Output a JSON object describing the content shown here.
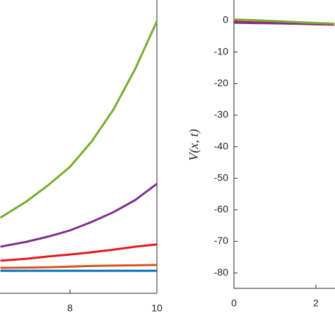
{
  "chart_data": [
    {
      "type": "line",
      "x": [
        6.4,
        7,
        7.5,
        8,
        8.5,
        9,
        9.5,
        10
      ],
      "xlim": [
        6.39,
        10
      ],
      "xticks": [
        8,
        10
      ],
      "ylim": [
        0,
        90
      ],
      "series": [
        {
          "name": "blue",
          "color": "#0072bd",
          "values": [
            6.9,
            6.9,
            6.9,
            6.9,
            6.9,
            6.9,
            6.9,
            6.9
          ]
        },
        {
          "name": "orange",
          "color": "#d95319",
          "values": [
            7.8,
            7.9,
            8.0,
            8.2,
            8.4,
            8.5,
            8.6,
            8.7
          ]
        },
        {
          "name": "red",
          "color": "#e8161b",
          "values": [
            10.0,
            10.6,
            11.3,
            11.9,
            12.6,
            13.4,
            14.3,
            15.0
          ]
        },
        {
          "name": "purple",
          "color": "#7e2f8e",
          "values": [
            14.3,
            15.8,
            17.4,
            19.3,
            21.9,
            24.9,
            28.6,
            33.6
          ]
        },
        {
          "name": "green",
          "color": "#77ac30",
          "values": [
            23.2,
            28.2,
            33.2,
            38.8,
            46.6,
            56.4,
            68.8,
            83.5
          ]
        }
      ]
    },
    {
      "type": "line",
      "y_label": "V(x, t)",
      "x": [
        0,
        0.5,
        1,
        1.5,
        2,
        2.45
      ],
      "xlim": [
        0,
        2.45
      ],
      "xticks": [
        0,
        2
      ],
      "ylim": [
        -84.9,
        6.5
      ],
      "yticks": [
        0,
        -10,
        -20,
        -30,
        -40,
        -50,
        -60,
        -70,
        -80
      ],
      "series": [
        {
          "name": "red",
          "color": "#e8161b",
          "values": [
            -0.4,
            -0.6,
            -0.8,
            -1.0,
            -1.2,
            -1.3
          ]
        },
        {
          "name": "purple",
          "color": "#7e2f8e",
          "values": [
            -0.7,
            -0.8,
            -0.9,
            -1.0,
            -1.1,
            -1.2
          ]
        },
        {
          "name": "green",
          "color": "#77ac30",
          "values": [
            0.3,
            0.1,
            -0.2,
            -0.5,
            -0.8,
            -1.0
          ]
        }
      ]
    }
  ]
}
